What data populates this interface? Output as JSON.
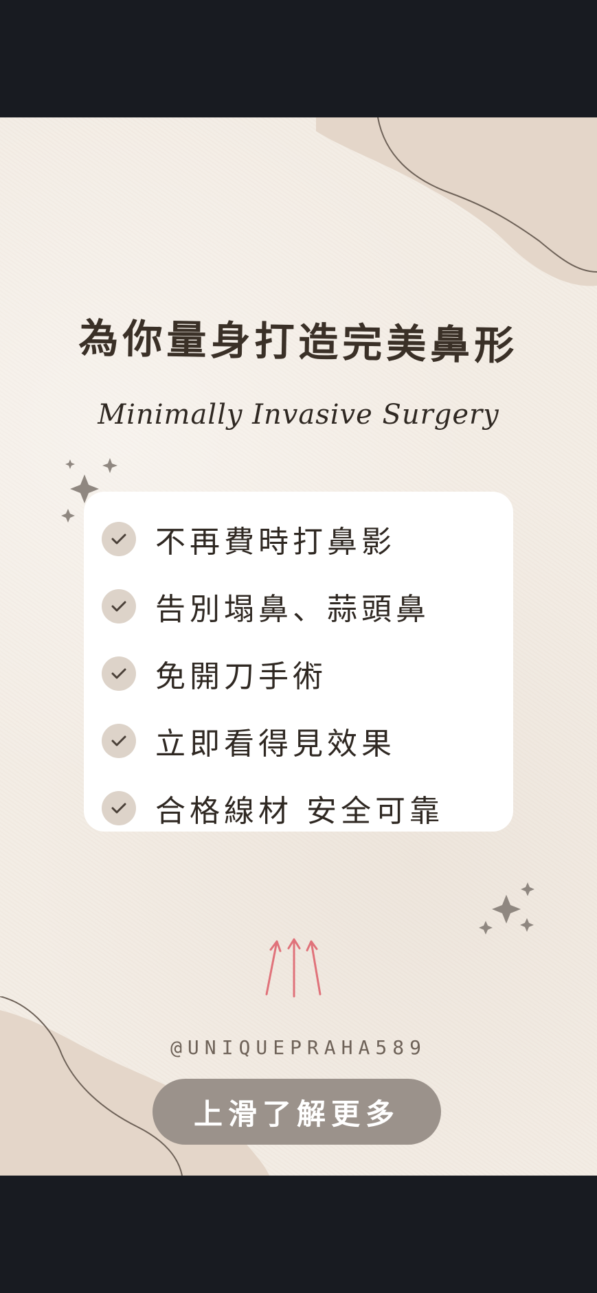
{
  "page": {
    "title": "為你量身打造完美鼻形",
    "subtitle": "Minimally Invasive Surgery",
    "handle": "@UNIQUEPRAHA589",
    "cta_label": "上滑了解更多"
  },
  "checklist": [
    {
      "label": "不再費時打鼻影"
    },
    {
      "label": "告別塌鼻、蒜頭鼻"
    },
    {
      "label": "免開刀手術"
    },
    {
      "label": "立即看得見效果"
    },
    {
      "label": "合格線材 安全可靠"
    }
  ],
  "icons": {
    "check": "check-icon",
    "sparkle": "sparkle-icon",
    "arrow": "arrow-up-icon"
  },
  "colors": {
    "background": "#f3ece4",
    "blob": "#e4d6c9",
    "text": "#3a3027",
    "check_circle": "#ddd3c9",
    "button": "#9b928b",
    "arrow": "#e0727a",
    "sparkle": "#8f8780"
  }
}
